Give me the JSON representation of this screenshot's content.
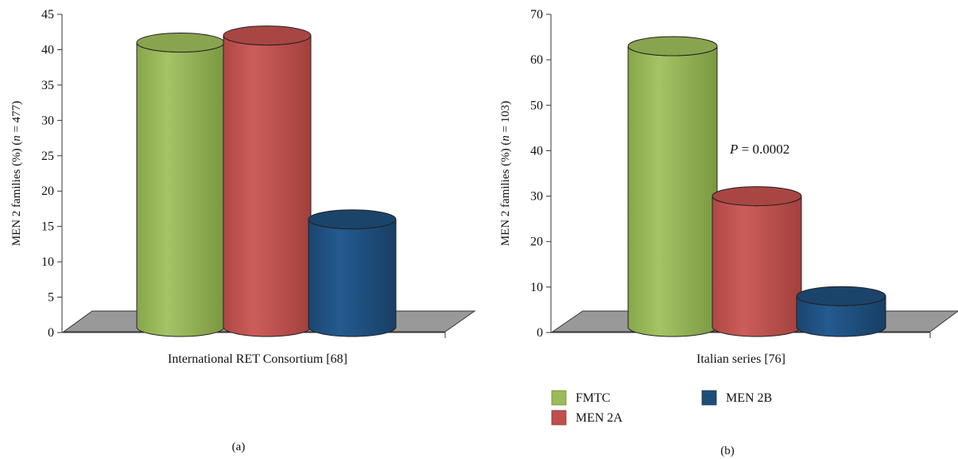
{
  "chart_data": [
    {
      "type": "bar",
      "style": "3d-cylinder",
      "panel_label": "(a)",
      "title": "",
      "ylabel_parts": [
        "MEN 2 families (%) (",
        "n",
        " = 477)"
      ],
      "xlabel": "International RET Consortium [68]",
      "categories": [
        "FMTC",
        "MEN 2A",
        "MEN 2B"
      ],
      "values": [
        41,
        42,
        16
      ],
      "ylim": [
        0,
        45
      ],
      "yticks": [
        0,
        5,
        10,
        15,
        20,
        25,
        30,
        35,
        40,
        45
      ],
      "grid": false,
      "colors": [
        "#9bbb59",
        "#c0504d",
        "#1f4e79"
      ]
    },
    {
      "type": "bar",
      "style": "3d-cylinder",
      "panel_label": "(b)",
      "title": "",
      "ylabel_parts": [
        "MEN 2 families (%) (",
        "n",
        " = 103)"
      ],
      "xlabel": "Italian series [76]",
      "categories": [
        "FMTC",
        "MEN 2A",
        "MEN 2B"
      ],
      "values": [
        63,
        30,
        8
      ],
      "ylim": [
        0,
        70
      ],
      "yticks": [
        0,
        10,
        20,
        30,
        40,
        50,
        60,
        70
      ],
      "grid": false,
      "colors": [
        "#9bbb59",
        "#c0504d",
        "#1f4e79"
      ],
      "annotation": {
        "italic": "P",
        "text": " = 0.0002"
      }
    }
  ],
  "legend": {
    "placement": "bottom-right",
    "items": [
      {
        "label": "FMTC",
        "color": "#9bbb59"
      },
      {
        "label": "MEN 2A",
        "color": "#c0504d"
      },
      {
        "label": "MEN 2B",
        "color": "#1f4e79"
      }
    ]
  }
}
